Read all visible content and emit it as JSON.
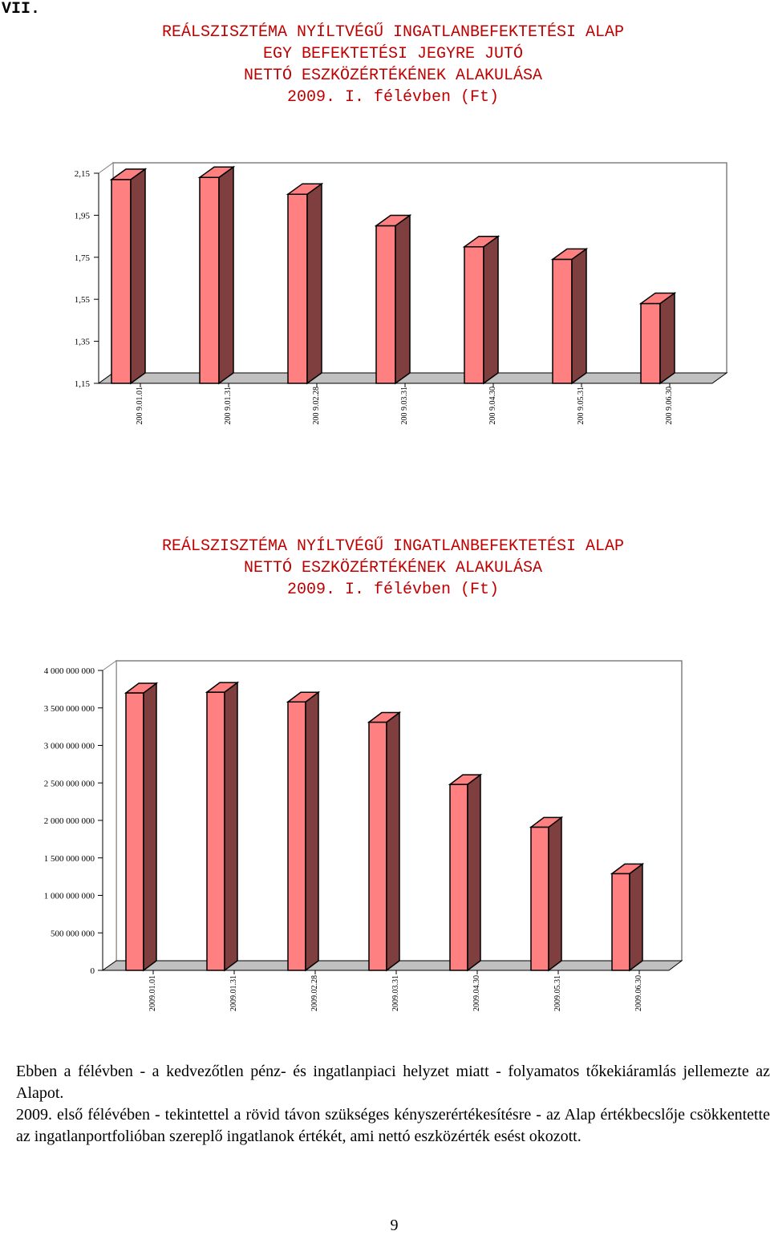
{
  "section_number": "VII.",
  "charts": [
    {
      "title_lines": [
        "REÁLSZISZTÉMA NYÍLTVÉGŰ INGATLANBEFEKTETÉSI ALAP",
        "EGY BEFEKTETÉSI JEGYRE JUTÓ",
        "NETTÓ ESZKÖZÉRTÉKÉNEK ALAKULÁSA",
        "2009. I. félévben (Ft)"
      ]
    },
    {
      "title_lines": [
        "REÁLSZISZTÉMA NYÍLTVÉGŰ INGATLANBEFEKTETÉSI ALAP",
        "NETTÓ ESZKÖZÉRTÉKÉNEK ALAKULÁSA",
        "2009. I. félévben (Ft)"
      ]
    }
  ],
  "chart_data": [
    {
      "type": "bar",
      "title": "REÁLSZISZTÉMA NYÍLTVÉGŰ INGATLANBEFEKTETÉSI ALAP EGY BEFEKTETÉSI JEGYRE JUTÓ NETTÓ ESZKÖZÉRTÉKÉNEK ALAKULÁSA 2009. I. félévben (Ft)",
      "categories": [
        "200 9.01.01",
        "200 9.01.31",
        "200 9.02.28",
        "200 9.03.31",
        "200 9.04.30",
        "200 9.05.31",
        "200 9.06.30"
      ],
      "values": [
        2.12,
        2.13,
        2.05,
        1.9,
        1.8,
        1.74,
        1.53
      ],
      "yticks": [
        "2,15",
        "1,95",
        "1,75",
        "1,55",
        "1,35",
        "1,15"
      ],
      "ylim": [
        1.15,
        2.15
      ],
      "grid": false,
      "style": "3d",
      "colors": {
        "front": "#ff8080",
        "side": "#7f3f3f",
        "top": "#ff8080"
      }
    },
    {
      "type": "bar",
      "title": "REÁLSZISZTÉMA NYÍLTVÉGŰ INGATLANBEFEKTETÉSI ALAP NETTÓ ESZKÖZÉRTÉKÉNEK ALAKULÁSA 2009. I. félévben (Ft)",
      "categories": [
        "2009.01.01",
        "2009.01.31",
        "2009.02.28",
        "2009.03.31",
        "2009.04.30",
        "2009.05.31",
        "2009.06.30"
      ],
      "values": [
        3700000000,
        3710000000,
        3580000000,
        3310000000,
        2480000000,
        1910000000,
        1290000000
      ],
      "yticks": [
        "4 000 000 000",
        "3 500 000 000",
        "3 000 000 000",
        "2 500 000 000",
        "2 000 000 000",
        "1 500 000 000",
        "1 000 000 000",
        "500 000 000",
        "0"
      ],
      "ylim": [
        0,
        4000000000
      ],
      "grid": false,
      "style": "3d",
      "colors": {
        "front": "#ff8080",
        "side": "#7f3f3f",
        "top": "#ff8080"
      }
    }
  ],
  "paragraphs": [
    "Ebben a félévben - a kedvezőtlen pénz- és ingatlanpiaci helyzet miatt - folyamatos tőkekiáramlás jellemezte az Alapot.",
    "2009. első félévében - tekintettel a rövid távon szükséges kényszerértékesítésre - az Alap értékbecslője csökkentette az ingatlanportfolióban szereplő ingatlanok értékét, ami nettó eszközérték esést okozott."
  ],
  "page_number": "9"
}
